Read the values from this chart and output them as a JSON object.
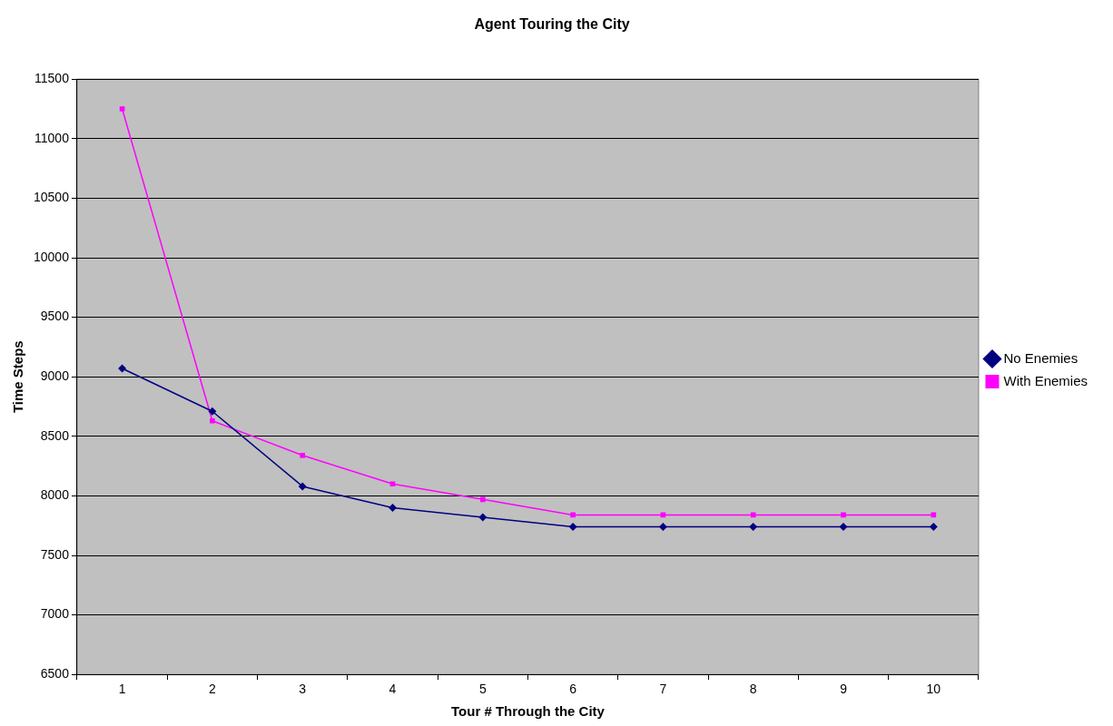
{
  "chart_data": {
    "type": "line",
    "title": "Agent Touring the City",
    "xlabel": "Tour # Through the City",
    "ylabel": "Time Steps",
    "categories": [
      "1",
      "2",
      "3",
      "4",
      "5",
      "6",
      "7",
      "8",
      "9",
      "10"
    ],
    "series": [
      {
        "name": "No Enemies",
        "color": "#000080",
        "marker": "diamond",
        "values": [
          9070,
          8710,
          8080,
          7900,
          7820,
          7740,
          7740,
          7740,
          7740,
          7740
        ]
      },
      {
        "name": "With Enemies",
        "color": "#ff00ff",
        "marker": "square",
        "values": [
          11250,
          8630,
          8340,
          8100,
          7970,
          7840,
          7840,
          7840,
          7840,
          7840
        ]
      }
    ],
    "ylim": [
      6500,
      11500
    ],
    "yticks": [
      6500,
      7000,
      7500,
      8000,
      8500,
      9000,
      9500,
      10000,
      10500,
      11000,
      11500
    ],
    "grid": "y",
    "legend": "right",
    "line_style": "solid"
  }
}
